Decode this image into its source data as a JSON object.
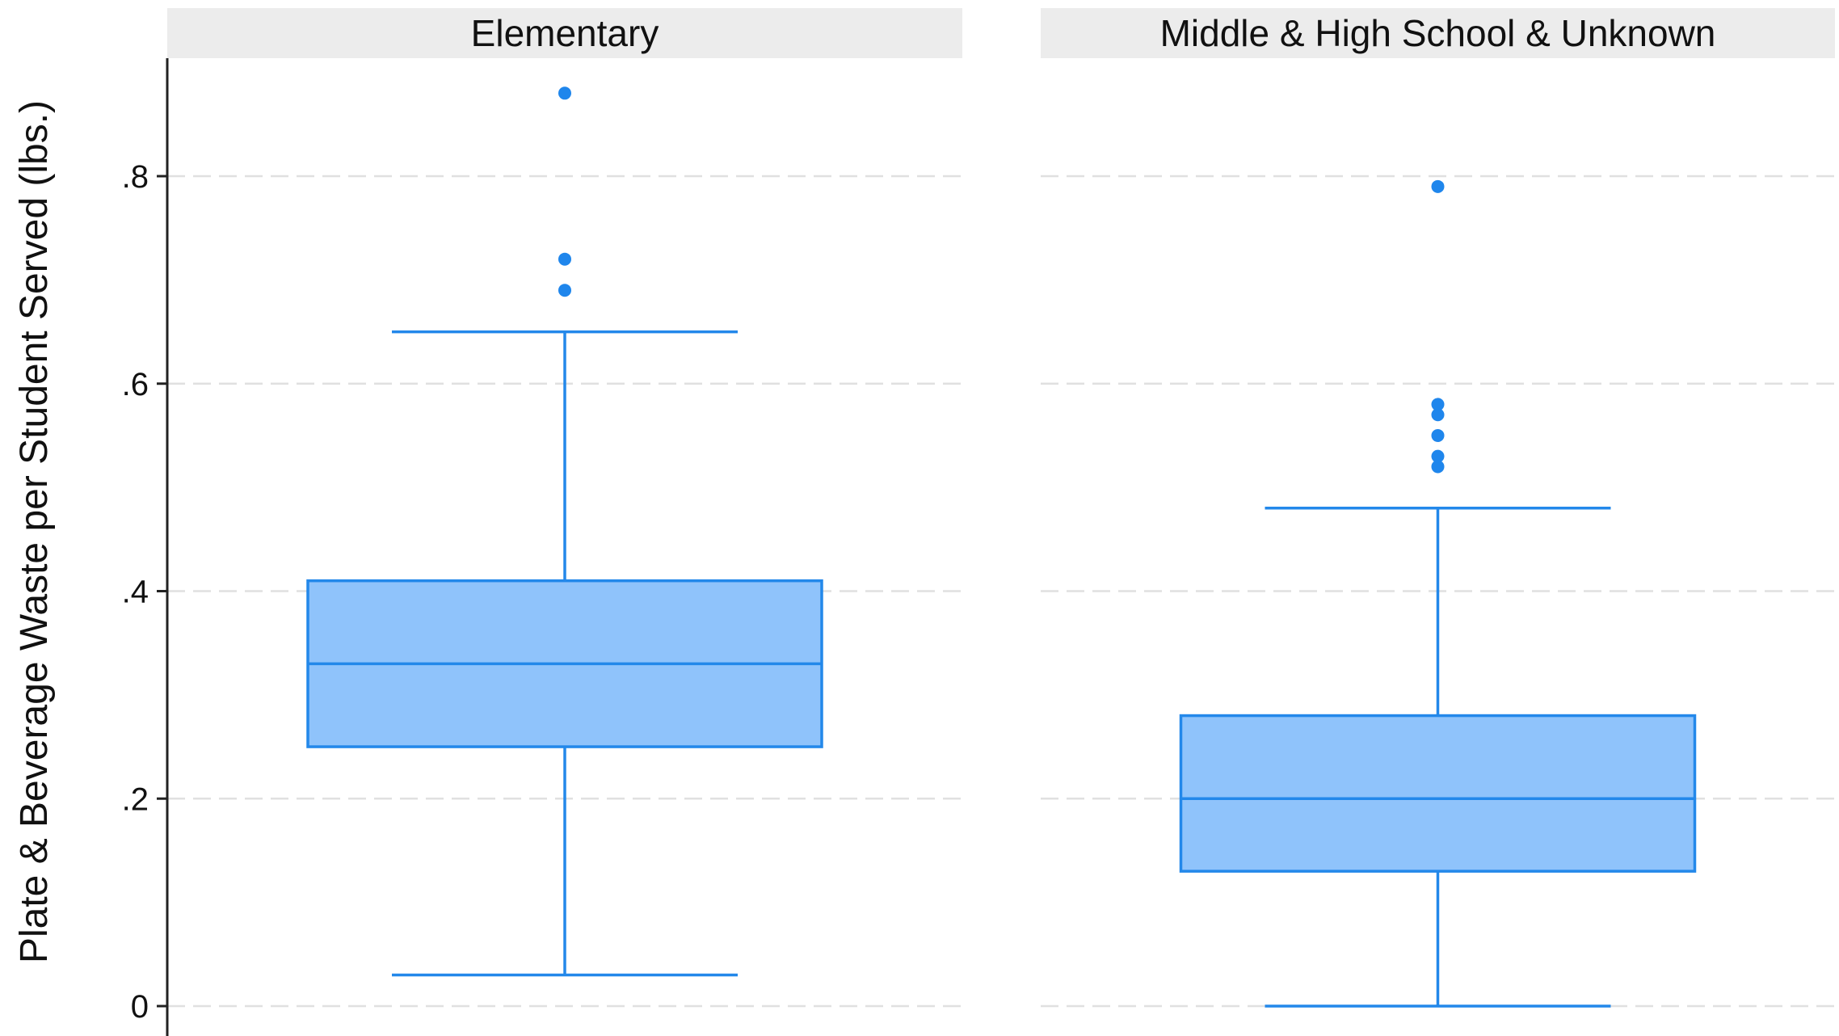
{
  "chart_data": {
    "type": "box",
    "ylabel": "Plate & Beverage Waste per Student Served (lbs.)",
    "ylim": [
      0,
      0.9
    ],
    "yticks": [
      {
        "value": 0,
        "label": "0"
      },
      {
        "value": 0.2,
        "label": ".2"
      },
      {
        "value": 0.4,
        "label": ".4"
      },
      {
        "value": 0.6,
        "label": ".6"
      },
      {
        "value": 0.8,
        "label": ".8"
      }
    ],
    "grid": "horizontal-dashed",
    "colors": {
      "box_fill": "#8fc3fb",
      "box_line": "#2388ea",
      "outlier": "#1f86ec",
      "grid": "#e0e0e0",
      "strip_bg": "#ececec"
    },
    "panels": [
      {
        "label": "Elementary",
        "whisker_low": 0.03,
        "q1": 0.25,
        "median": 0.33,
        "q3": 0.41,
        "whisker_high": 0.65,
        "outliers": [
          0.69,
          0.72,
          0.88
        ]
      },
      {
        "label": "Middle & High School & Unknown",
        "whisker_low": 0.0,
        "q1": 0.13,
        "median": 0.2,
        "q3": 0.28,
        "whisker_high": 0.48,
        "outliers": [
          0.52,
          0.53,
          0.55,
          0.57,
          0.58,
          0.79
        ]
      }
    ]
  }
}
